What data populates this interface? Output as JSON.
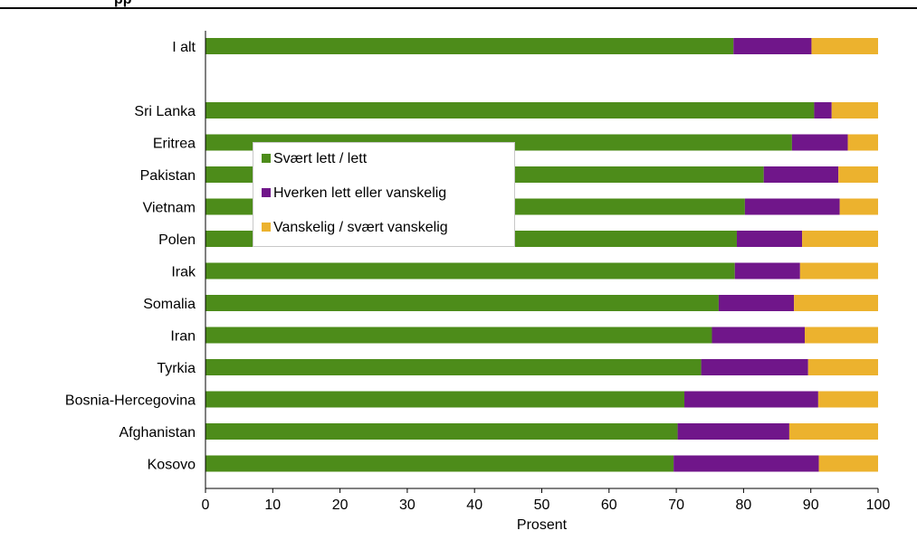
{
  "header": {
    "fragment": "pp"
  },
  "chart_data": {
    "type": "bar",
    "orientation": "horizontal",
    "stacked": true,
    "categories": [
      "I alt",
      "Sri Lanka",
      "Eritrea",
      "Pakistan",
      "Vietnam",
      "Polen",
      "Irak",
      "Somalia",
      "Iran",
      "Tyrkia",
      "Bosnia-Hercegovina",
      "Afghanistan",
      "Kosovo"
    ],
    "series": [
      {
        "name": "Svært lett / lett",
        "color": "#4d8c1a",
        "values": [
          78.5,
          90.5,
          87.2,
          83.0,
          80.2,
          79.0,
          78.7,
          76.3,
          75.3,
          73.7,
          71.2,
          70.2,
          69.6
        ]
      },
      {
        "name": "Hverken lett eller vanskelig",
        "color": "#70168a",
        "values": [
          11.6,
          2.6,
          8.3,
          11.1,
          14.1,
          9.7,
          9.7,
          11.2,
          13.8,
          15.9,
          19.9,
          16.6,
          21.6
        ]
      },
      {
        "name": "Vanskelig / svært vanskelig",
        "color": "#ecb22e",
        "values": [
          9.9,
          6.9,
          4.5,
          5.9,
          5.7,
          11.3,
          11.6,
          12.5,
          10.9,
          10.4,
          8.9,
          13.2,
          8.8
        ]
      }
    ],
    "xlabel": "Prosent",
    "xlim": [
      0,
      100
    ],
    "xticks": [
      "0",
      "10",
      "20",
      "30",
      "40",
      "50",
      "60",
      "70",
      "80",
      "90",
      "100"
    ],
    "grid": false,
    "legend_position": "upper-left"
  }
}
